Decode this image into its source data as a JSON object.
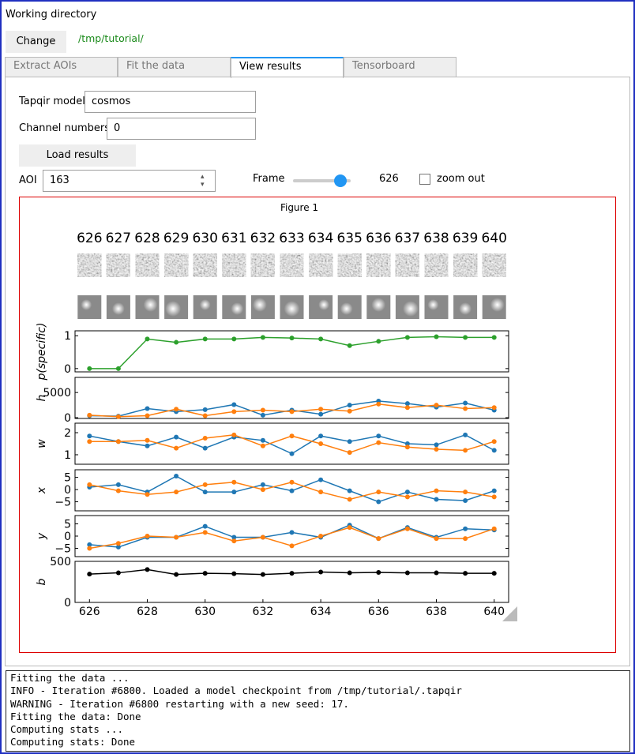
{
  "header": {
    "title": "Working directory",
    "button": "Change",
    "path": "/tmp/tutorial/"
  },
  "tabs": [
    "Extract AOIs",
    "Fit the data",
    "View results",
    "Tensorboard"
  ],
  "form": {
    "model_label": "Tapqir model",
    "model_value": "cosmos",
    "channel_label": "Channel numbers",
    "channel_value": "0",
    "load_button": "Load results",
    "aoi_label": "AOI",
    "aoi_value": "163",
    "frame_label": "Frame",
    "frame_value": 626,
    "zoom_label": "zoom out"
  },
  "figure_title": "Figure 1",
  "chart_data": [
    {
      "type": "line",
      "ylabel": "p(specific)",
      "x": [
        626,
        627,
        628,
        629,
        630,
        631,
        632,
        633,
        634,
        635,
        636,
        637,
        638,
        639,
        640
      ],
      "xlim": [
        625.5,
        640.5
      ],
      "ylim": [
        -0.1,
        1.15
      ],
      "yticks": [
        0,
        1
      ],
      "series": [
        {
          "color": "#2ca02c",
          "values": [
            0,
            0,
            0.9,
            0.8,
            0.9,
            0.9,
            0.95,
            0.93,
            0.9,
            0.7,
            0.83,
            0.95,
            0.97,
            0.95,
            0.95
          ]
        }
      ]
    },
    {
      "type": "line",
      "ylabel": "h",
      "x": [
        626,
        627,
        628,
        629,
        630,
        631,
        632,
        633,
        634,
        635,
        636,
        637,
        638,
        639,
        640
      ],
      "xlim": [
        625.5,
        640.5
      ],
      "ylim": [
        -150,
        8000
      ],
      "yticks": [
        0,
        5000
      ],
      "series": [
        {
          "color": "#1f77b4",
          "values": [
            400,
            300,
            1800,
            1200,
            1600,
            2600,
            500,
            1500,
            700,
            2500,
            3300,
            2800,
            2100,
            2900,
            1500
          ]
        },
        {
          "color": "#ff7f0e",
          "values": [
            500,
            200,
            400,
            1700,
            400,
            1200,
            1500,
            1200,
            1700,
            1300,
            2700,
            2000,
            2500,
            1800,
            2000
          ]
        }
      ]
    },
    {
      "type": "line",
      "ylabel": "w",
      "x": [
        626,
        627,
        628,
        629,
        630,
        631,
        632,
        633,
        634,
        635,
        636,
        637,
        638,
        639,
        640
      ],
      "xlim": [
        625.5,
        640.5
      ],
      "ylim": [
        0.57,
        2.43
      ],
      "yticks": [
        1,
        2
      ],
      "series": [
        {
          "color": "#1f77b4",
          "values": [
            1.85,
            1.6,
            1.4,
            1.8,
            1.3,
            1.8,
            1.65,
            1.05,
            1.85,
            1.6,
            1.85,
            1.5,
            1.45,
            1.9,
            1.2
          ]
        },
        {
          "color": "#ff7f0e",
          "values": [
            1.6,
            1.6,
            1.65,
            1.3,
            1.75,
            1.9,
            1.4,
            1.85,
            1.5,
            1.1,
            1.55,
            1.35,
            1.25,
            1.2,
            1.6
          ]
        }
      ]
    },
    {
      "type": "line",
      "ylabel": "x",
      "x": [
        626,
        627,
        628,
        629,
        630,
        631,
        632,
        633,
        634,
        635,
        636,
        637,
        638,
        639,
        640
      ],
      "xlim": [
        625.5,
        640.5
      ],
      "ylim": [
        -8.7,
        8.1
      ],
      "yticks": [
        {
          "value": -5,
          "label": "−5"
        },
        0,
        5
      ],
      "series": [
        {
          "color": "#1f77b4",
          "values": [
            1,
            2,
            -1,
            5.5,
            -1,
            -1,
            2,
            -0.5,
            4,
            -0.5,
            -5,
            -1,
            -4,
            -4.5,
            -0.5
          ]
        },
        {
          "color": "#ff7f0e",
          "values": [
            2,
            -0.5,
            -2,
            -1,
            2,
            3,
            0,
            3,
            -1,
            -4,
            -1,
            -3,
            -0.5,
            -1,
            -3
          ]
        }
      ]
    },
    {
      "type": "line",
      "ylabel": "y",
      "x": [
        626,
        627,
        628,
        629,
        630,
        631,
        632,
        633,
        634,
        635,
        636,
        637,
        638,
        639,
        640
      ],
      "xlim": [
        625.5,
        640.5
      ],
      "ylim": [
        -8.4,
        8.4
      ],
      "yticks": [
        {
          "value": -5,
          "label": "−5"
        },
        0,
        5
      ],
      "series": [
        {
          "color": "#1f77b4",
          "values": [
            -3.5,
            -4.5,
            -0.5,
            -0.5,
            4,
            -0.5,
            -0.5,
            1.5,
            -0.5,
            4.5,
            -1,
            3.5,
            -0.5,
            3,
            2.5
          ]
        },
        {
          "color": "#ff7f0e",
          "values": [
            -5,
            -3,
            0,
            -0.5,
            1.5,
            -2,
            -0.5,
            -4,
            0,
            3.5,
            -1,
            3,
            -1,
            -1,
            3
          ]
        }
      ]
    },
    {
      "type": "line",
      "ylabel": "b",
      "x": [
        626,
        627,
        628,
        629,
        630,
        631,
        632,
        633,
        634,
        635,
        636,
        637,
        638,
        639,
        640
      ],
      "xlim": [
        625.5,
        640.5
      ],
      "ylim": [
        0,
        500
      ],
      "yticks": [
        0,
        500
      ],
      "xticks": [
        626,
        628,
        630,
        632,
        634,
        636,
        638,
        640
      ],
      "series": [
        {
          "color": "#000000",
          "values": [
            345,
            360,
            400,
            340,
            355,
            350,
            340,
            355,
            370,
            360,
            365,
            360,
            360,
            355,
            355
          ]
        }
      ]
    }
  ],
  "log": [
    "Fitting the data ...",
    "INFO - Iteration #6800. Loaded a model checkpoint from /tmp/tutorial/.tapqir",
    "WARNING - Iteration #6800 restarting with a new seed: 17.",
    "Fitting the data: Done",
    "Computing stats ...",
    "Computing stats: Done"
  ]
}
